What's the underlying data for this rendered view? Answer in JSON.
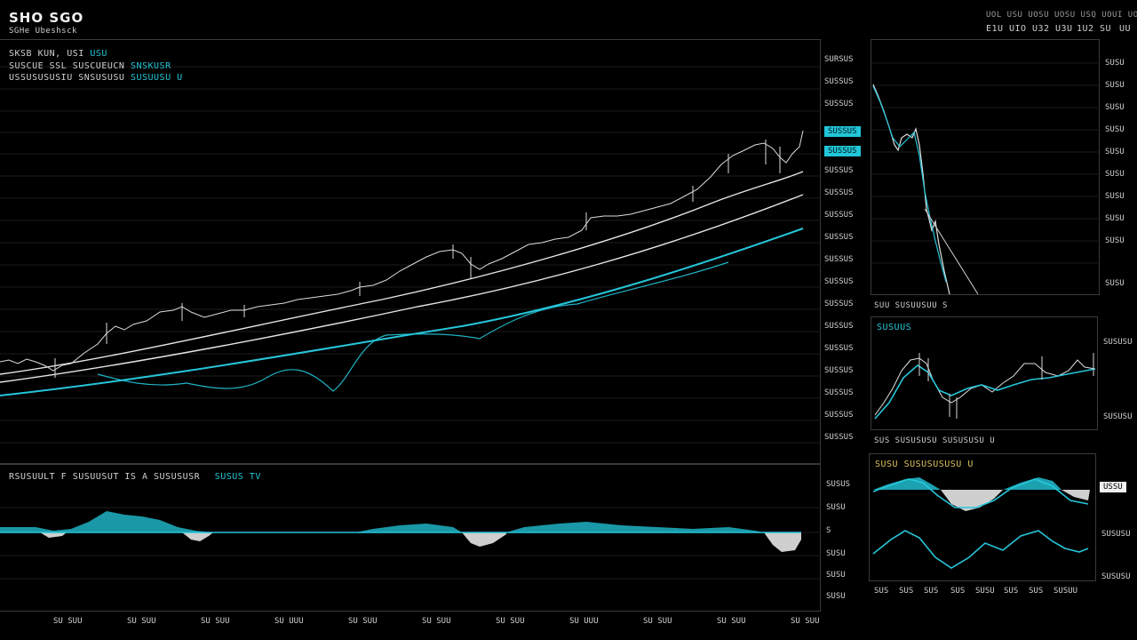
{
  "header": {
    "title": "SHO SGO",
    "subtitle": "SGHe Ubeshsck",
    "top_right_row1": "UOL USU UOSU UOSU USQ UOUI UOUI USSU",
    "top_right_row2": [
      "E1U",
      "UIO",
      "U32",
      "U3U",
      "1U2",
      "SU",
      "UU"
    ]
  },
  "main_chart": {
    "legend_line1": "SKSB KUN, USI",
    "legend_line1_cyan": "USU",
    "legend_line2": "SUSCUE SSL SUSCUEUCN",
    "legend_line2_cyan": "SNSKUSR",
    "legend_line3": "USSUSUSUSIU SNSUSUSU",
    "legend_line3_cyan": "SUSUUSU U",
    "y_labels": [
      "SURSUS",
      "SUSSUS",
      "SUSSUS",
      "SUSSUS",
      "SUSSUS",
      "SUSSUS",
      "SUSSUS",
      "SUSSUS",
      "SUSSUS",
      "SUSSUS",
      "SUSSUS",
      "SUSSUS",
      "SUSSUS",
      "SUSSUS",
      "SUSSUS",
      "SUSSUS",
      "SUSSUS",
      "SUSSUS"
    ],
    "price_tag_1": "SUSSUS",
    "price_tag_2": "SUSSUS"
  },
  "oscillator": {
    "label": "RSUSUULT F SUSUUSUT  IS A SUSUSUSR",
    "label_cyan": "SUSUS TV",
    "y_labels": [
      "SUSUS",
      "SUSU",
      "S",
      "SUSU",
      "SUSU",
      "SUSU"
    ]
  },
  "x_axis": [
    "SU SUU",
    "SU SUU",
    "SU SUU",
    "SU UUU",
    "SU SUU",
    "SU SUU",
    "SU SUU",
    "SU UUU",
    "SU SUU",
    "SU SUU",
    "SU SUU"
  ],
  "right_top": {
    "y_labels": [
      "SUSU",
      "SUSU",
      "SUSU",
      "SUSU",
      "SUSU",
      "SUSU",
      "SUSU",
      "SUSU",
      "SUSU",
      "SUSU"
    ],
    "caption": "SUU SUSUUSUU S"
  },
  "right_mid": {
    "title": "SUSUUS",
    "y_top": "SUSUSU",
    "y_bottom": "SUSUSU",
    "caption": "SUS SUSUSUSU  SUSUSUSU U"
  },
  "right_bottom": {
    "title": "SUSU SUSUSUSUSU U",
    "tag": "USSU",
    "y_labels": [
      "SUSUSU",
      "SUSUSU"
    ],
    "x_labels": [
      "SUS",
      "SUS",
      "SUS",
      "SUS",
      "SUSU",
      "SUS",
      "SUS",
      "SUSUU"
    ]
  },
  "colors": {
    "accent": "#22c6d8",
    "line": "#e8e8e8",
    "grid": "#1c1c1c",
    "panel_border": "#3a3a3a"
  }
}
